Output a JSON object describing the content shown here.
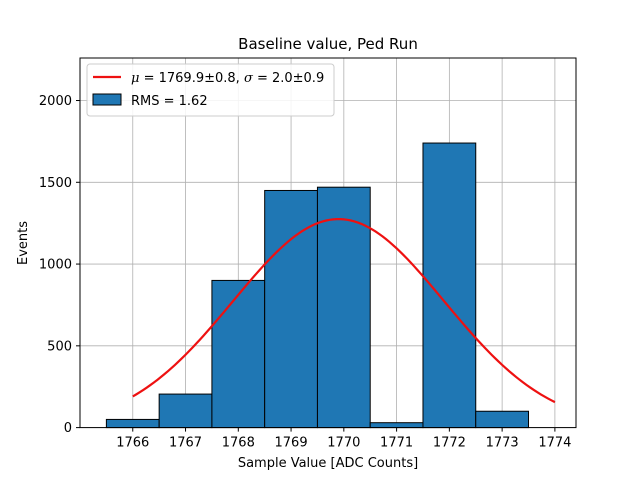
{
  "chart_data": {
    "type": "bar",
    "title": "Baseline value, Ped Run",
    "xlabel": "Sample Value [ADC Counts]",
    "ylabel": "Events",
    "xlim": [
      1765.0,
      1774.4
    ],
    "ylim": [
      0,
      2260
    ],
    "xticks": [
      1766,
      1767,
      1768,
      1769,
      1770,
      1771,
      1772,
      1773,
      1774
    ],
    "yticks": [
      0,
      500,
      1000,
      1500,
      2000
    ],
    "grid": true,
    "legend_position": "top-left",
    "bins": [
      {
        "left": 1765.5,
        "right": 1766.5,
        "count": 50
      },
      {
        "left": 1766.5,
        "right": 1767.5,
        "count": 205
      },
      {
        "left": 1767.5,
        "right": 1768.5,
        "count": 900
      },
      {
        "left": 1768.5,
        "right": 1769.5,
        "count": 1450
      },
      {
        "left": 1769.5,
        "right": 1770.5,
        "count": 1470
      },
      {
        "left": 1770.5,
        "right": 1771.5,
        "count": 30
      },
      {
        "left": 1771.5,
        "right": 1772.5,
        "count": 1740
      },
      {
        "left": 1772.5,
        "right": 1773.5,
        "count": 100
      }
    ],
    "fit": {
      "mu": 1769.9,
      "sigma": 2.0,
      "amplitude": 1275,
      "x_range": [
        1766,
        1774
      ]
    },
    "series": [
      {
        "name": "RMS = 1.62",
        "kind": "histogram",
        "color": "#1f77b4"
      },
      {
        "name_mu_label": "μ = 1769.9±0.8, σ = 2.0±0.9",
        "kind": "fit-line",
        "color": "#ee1111"
      }
    ]
  }
}
